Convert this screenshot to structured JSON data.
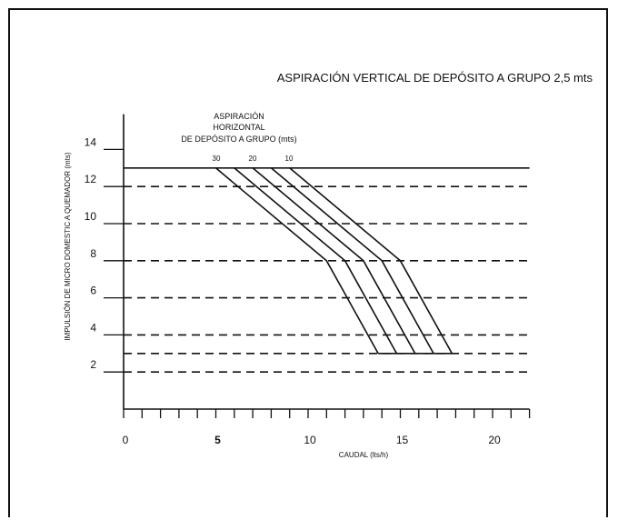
{
  "chart_data": {
    "type": "line",
    "title": "ASPIRACIÓN VERTICAL DE DEPÓSITO A GRUPO 2,5 mts",
    "xlabel": "CAUDAL (lts/h)",
    "ylabel": "IMPULSIÓN DE MICRO DOMESTIC A QUEMADOR (mts)",
    "xlim": [
      0,
      22
    ],
    "ylim": [
      0,
      15
    ],
    "x_ticks": [
      "0",
      "5",
      "10",
      "15",
      "20"
    ],
    "y_ticks": [
      "2",
      "4",
      "6",
      "8",
      "10",
      "12",
      "14"
    ],
    "dashed_levels": [
      2,
      3,
      4,
      6,
      8,
      10,
      12
    ],
    "top_level": 13,
    "legend": {
      "title_lines": [
        "ASPIRACIÓN",
        "HORIZONTAL",
        "DE DEPÓSITO A GRUPO (mts)"
      ],
      "labels": [
        "30",
        "20",
        "10"
      ]
    },
    "series": [
      {
        "x": [
          5.0,
          11.0,
          13.8
        ],
        "y": [
          13,
          8,
          3
        ]
      },
      {
        "x": [
          6.0,
          12.0,
          14.8
        ],
        "y": [
          13,
          8,
          3
        ]
      },
      {
        "x": [
          7.0,
          13.0,
          15.8
        ],
        "y": [
          13,
          8,
          3
        ]
      },
      {
        "x": [
          8.0,
          14.0,
          16.8
        ],
        "y": [
          13,
          8,
          3
        ]
      },
      {
        "x": [
          9.0,
          15.0,
          17.8
        ],
        "y": [
          13,
          8,
          3
        ]
      }
    ],
    "bottom_segment": {
      "x": [
        13.8,
        17.8
      ],
      "y": 3
    },
    "grid": false,
    "line_color": "#111111"
  }
}
